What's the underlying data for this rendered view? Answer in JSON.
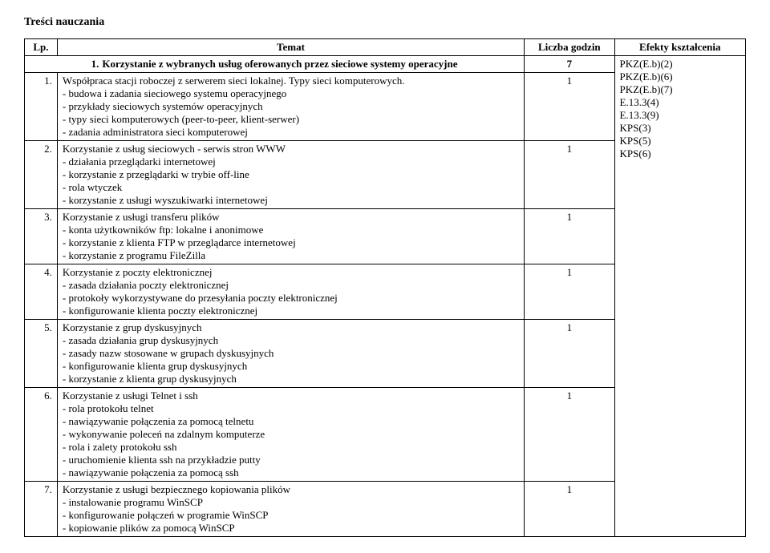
{
  "title": "Treści nauczania",
  "headers": {
    "lp": "Lp.",
    "temat": "Temat",
    "godziny": "Liczba godzin",
    "efekty": "Efekty kształcenia"
  },
  "section": {
    "number": "1.",
    "title": "Korzystanie z wybranych usług oferowanych przez sieciowe systemy operacyjne",
    "hours": "7"
  },
  "rows": [
    {
      "lp": "1.",
      "title": "Współpraca stacji roboczej z serwerem sieci lokalnej. Typy sieci komputerowych.",
      "hours": "1",
      "sub": [
        "- budowa i zadania sieciowego systemu operacyjnego",
        "- przykłady sieciowych systemów operacyjnych",
        "- typy sieci komputerowych (peer-to-peer, klient-serwer)",
        "- zadania administratora sieci komputerowej"
      ]
    },
    {
      "lp": "2.",
      "title": "Korzystanie z usług sieciowych - serwis stron WWW",
      "hours": "1",
      "sub": [
        "- działania przeglądarki internetowej",
        "- korzystanie z przeglądarki w trybie off-line",
        "- rola wtyczek",
        "- korzystanie z usługi wyszukiwarki internetowej"
      ]
    },
    {
      "lp": "3.",
      "title": "Korzystanie z usługi transferu plików",
      "hours": "1",
      "sub": [
        "- konta użytkowników ftp: lokalne i anonimowe",
        "- korzystanie z klienta FTP w przeglądarce internetowej",
        "- korzystanie z programu FileZilla"
      ]
    },
    {
      "lp": "4.",
      "title": "Korzystanie z poczty elektronicznej",
      "hours": "1",
      "sub": [
        "- zasada działania poczty elektronicznej",
        "- protokoły wykorzystywane do przesyłania poczty elektronicznej",
        "- konfigurowanie klienta poczty elektronicznej"
      ]
    },
    {
      "lp": "5.",
      "title": "Korzystanie z grup dyskusyjnych",
      "hours": "1",
      "sub": [
        "- zasada działania grup dyskusyjnych",
        "- zasady nazw stosowane w grupach dyskusyjnych",
        "- konfigurowanie klienta grup dyskusyjnych",
        "- korzystanie z klienta grup dyskusyjnych"
      ]
    },
    {
      "lp": "6.",
      "title": "Korzystanie z usługi Telnet i ssh",
      "hours": "1",
      "sub": [
        "- rola protokołu telnet",
        "- nawiązywanie połączenia za pomocą telnetu",
        "- wykonywanie poleceń na zdalnym komputerze",
        "- rola i zalety protokołu ssh",
        "- uruchomienie klienta ssh na przykładzie putty",
        "- nawiązywanie połączenia za pomocą ssh"
      ]
    },
    {
      "lp": "7.",
      "title": "Korzystanie z usługi bezpiecznego kopiowania plików",
      "hours": "1",
      "sub": [
        "- instalowanie programu WinSCP",
        "- konfigurowanie połączeń w programie WinSCP",
        "- kopiowanie plików za pomocą WinSCP"
      ]
    }
  ],
  "efekty": [
    "PKZ(E.b)(2)",
    "PKZ(E.b)(6)",
    "PKZ(E.b)(7)",
    "E.13.3(4)",
    "E.13.3(9)",
    "KPS(3)",
    "KPS(5)",
    "KPS(6)"
  ]
}
